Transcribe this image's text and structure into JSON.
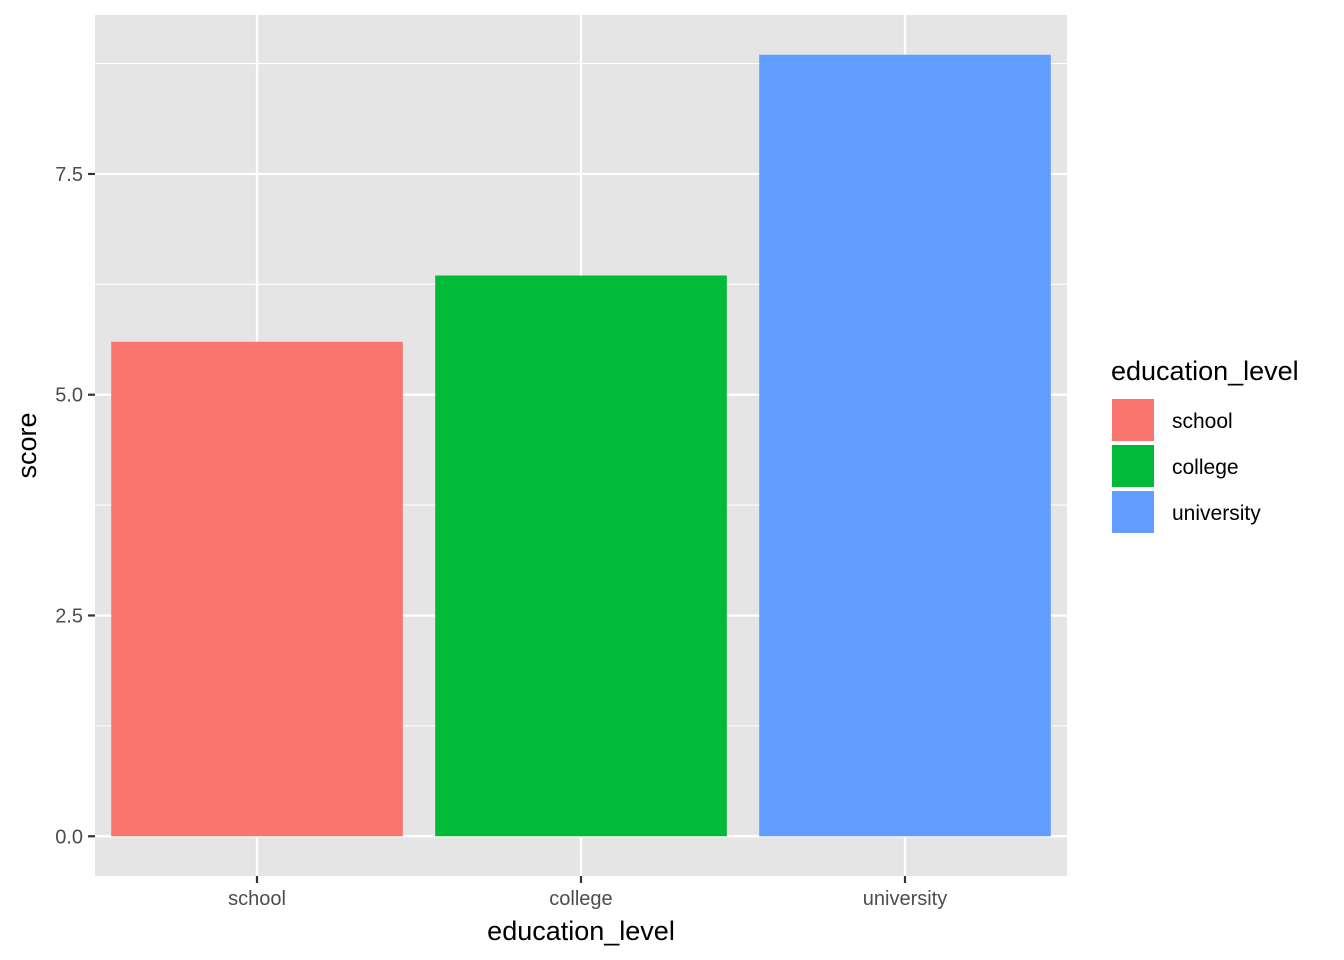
{
  "chart_data": {
    "type": "bar",
    "categories": [
      "school",
      "college",
      "university"
    ],
    "values": [
      5.6,
      6.35,
      8.85
    ],
    "colors": [
      "#F8766D",
      "#00BA38",
      "#619CFF"
    ],
    "xlabel": "education_level",
    "ylabel": "score",
    "ylim": [
      -0.45,
      9.3
    ],
    "y_ticks": [
      0,
      2.5,
      5,
      7.5
    ],
    "y_tick_labels": [
      "0.0",
      "2.5",
      "5.0",
      "7.5"
    ],
    "grid": true,
    "panel_background": "#E5E5E5",
    "legend": {
      "title": "education_level",
      "placement": "right",
      "items": [
        "school",
        "college",
        "university"
      ]
    }
  }
}
